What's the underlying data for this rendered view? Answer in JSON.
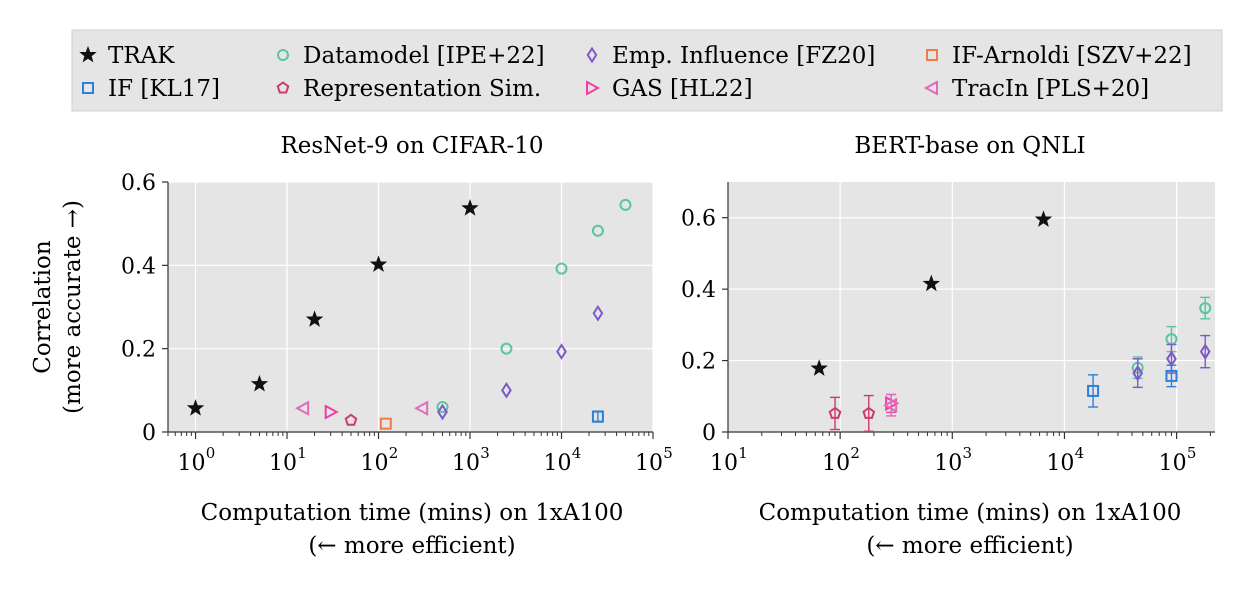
{
  "legend": {
    "items": [
      {
        "label": "TRAK",
        "marker": "star-icon",
        "color": "#111111"
      },
      {
        "label": "Datamodel [IPE+22]",
        "marker": "circle-icon",
        "color": "#5bc4a0"
      },
      {
        "label": "Emp. Influence [FZ20]",
        "marker": "diamond-icon",
        "color": "#7e57c9"
      },
      {
        "label": "IF-Arnoldi [SZV+22]",
        "marker": "square-icon",
        "color": "#f07a4a"
      },
      {
        "label": "IF [KL17]",
        "marker": "square-icon",
        "color": "#2e7fd9"
      },
      {
        "label": "Representation Sim.",
        "marker": "pentagon-icon",
        "color": "#cc3d6a"
      },
      {
        "label": "GAS [HL22]",
        "marker": "triangle-right-icon",
        "color": "#f03ea4"
      },
      {
        "label": "TracIn [PLS+20]",
        "marker": "triangle-left-icon",
        "color": "#e26ab8"
      }
    ]
  },
  "chart_data": [
    {
      "type": "scatter",
      "title": "ResNet-9 on CIFAR-10",
      "xlabel": "Computation time (mins) on 1xA100",
      "xlabel2": "(← more efficient)",
      "ylabel": "Correlation",
      "ylabel2": "(more accurate →)",
      "xscale": "log",
      "xlim": [
        0.5,
        100000
      ],
      "ylim": [
        0,
        0.6
      ],
      "yticks": [
        0,
        0.2,
        0.4,
        0.6
      ],
      "yticklabels": [
        "0",
        "0.2",
        "0.4",
        "0.6"
      ],
      "xticks": [
        1,
        10,
        100,
        1000,
        10000,
        100000
      ],
      "xtick_base": "10",
      "xtick_exps": [
        "0",
        "1",
        "2",
        "3",
        "4",
        "5"
      ],
      "grid": true,
      "series": [
        {
          "name": "TRAK",
          "points": [
            {
              "x": 1,
              "y": 0.057
            },
            {
              "x": 5,
              "y": 0.115
            },
            {
              "x": 20,
              "y": 0.27
            },
            {
              "x": 100,
              "y": 0.402
            },
            {
              "x": 1000,
              "y": 0.537
            }
          ]
        },
        {
          "name": "Datamodel [IPE+22]",
          "points": [
            {
              "x": 500,
              "y": 0.06
            },
            {
              "x": 2500,
              "y": 0.2
            },
            {
              "x": 10000,
              "y": 0.392
            },
            {
              "x": 25000,
              "y": 0.483
            },
            {
              "x": 50000,
              "y": 0.545
            }
          ]
        },
        {
          "name": "Emp. Influence [FZ20]",
          "points": [
            {
              "x": 500,
              "y": 0.048
            },
            {
              "x": 2500,
              "y": 0.1
            },
            {
              "x": 10000,
              "y": 0.193
            },
            {
              "x": 25000,
              "y": 0.285
            }
          ]
        },
        {
          "name": "IF-Arnoldi [SZV+22]",
          "points": [
            {
              "x": 120,
              "y": 0.02
            }
          ]
        },
        {
          "name": "IF [KL17]",
          "points": [
            {
              "x": 25000,
              "y": 0.037,
              "err": 0.013
            }
          ]
        },
        {
          "name": "Representation Sim.",
          "points": [
            {
              "x": 50,
              "y": 0.028
            }
          ]
        },
        {
          "name": "GAS [HL22]",
          "points": [
            {
              "x": 30,
              "y": 0.048
            }
          ]
        },
        {
          "name": "TracIn [PLS+20]",
          "points": [
            {
              "x": 15,
              "y": 0.057
            },
            {
              "x": 300,
              "y": 0.057
            }
          ]
        }
      ]
    },
    {
      "type": "scatter",
      "title": "BERT-base on QNLI",
      "xlabel": "Computation time (mins) on 1xA100",
      "xlabel2": "(← more efficient)",
      "xscale": "log",
      "xlim": [
        10,
        220000
      ],
      "ylim": [
        0,
        0.7
      ],
      "yticks": [
        0,
        0.2,
        0.4,
        0.6
      ],
      "yticklabels": [
        "0",
        "0.2",
        "0.4",
        "0.6"
      ],
      "xticks": [
        10,
        100,
        1000,
        10000,
        100000
      ],
      "xtick_base": "10",
      "xtick_exps": [
        "1",
        "2",
        "3",
        "4",
        "5"
      ],
      "grid": true,
      "series": [
        {
          "name": "TRAK",
          "points": [
            {
              "x": 65,
              "y": 0.178
            },
            {
              "x": 650,
              "y": 0.415
            },
            {
              "x": 6500,
              "y": 0.595
            }
          ]
        },
        {
          "name": "Datamodel [IPE+22]",
          "points": [
            {
              "x": 45000,
              "y": 0.18,
              "err": 0.03
            },
            {
              "x": 90000,
              "y": 0.26,
              "err": 0.035
            },
            {
              "x": 180000,
              "y": 0.347,
              "err": 0.03
            }
          ]
        },
        {
          "name": "Emp. Influence [FZ20]",
          "points": [
            {
              "x": 45000,
              "y": 0.165,
              "err": 0.04
            },
            {
              "x": 90000,
              "y": 0.205,
              "err": 0.04
            },
            {
              "x": 180000,
              "y": 0.225,
              "err": 0.045
            }
          ]
        },
        {
          "name": "IF [KL17]",
          "points": [
            {
              "x": 18000,
              "y": 0.115,
              "err": 0.045
            },
            {
              "x": 90000,
              "y": 0.157,
              "err": 0.03
            }
          ]
        },
        {
          "name": "Representation Sim.",
          "points": [
            {
              "x": 90,
              "y": 0.052,
              "err": 0.045
            },
            {
              "x": 180,
              "y": 0.052,
              "err": 0.05
            }
          ]
        },
        {
          "name": "GAS [HL22]",
          "points": [
            {
              "x": 285,
              "y": 0.08,
              "err": 0.025
            }
          ]
        },
        {
          "name": "TracIn [PLS+20]",
          "points": [
            {
              "x": 285,
              "y": 0.075,
              "err": 0.03
            }
          ]
        }
      ]
    }
  ]
}
